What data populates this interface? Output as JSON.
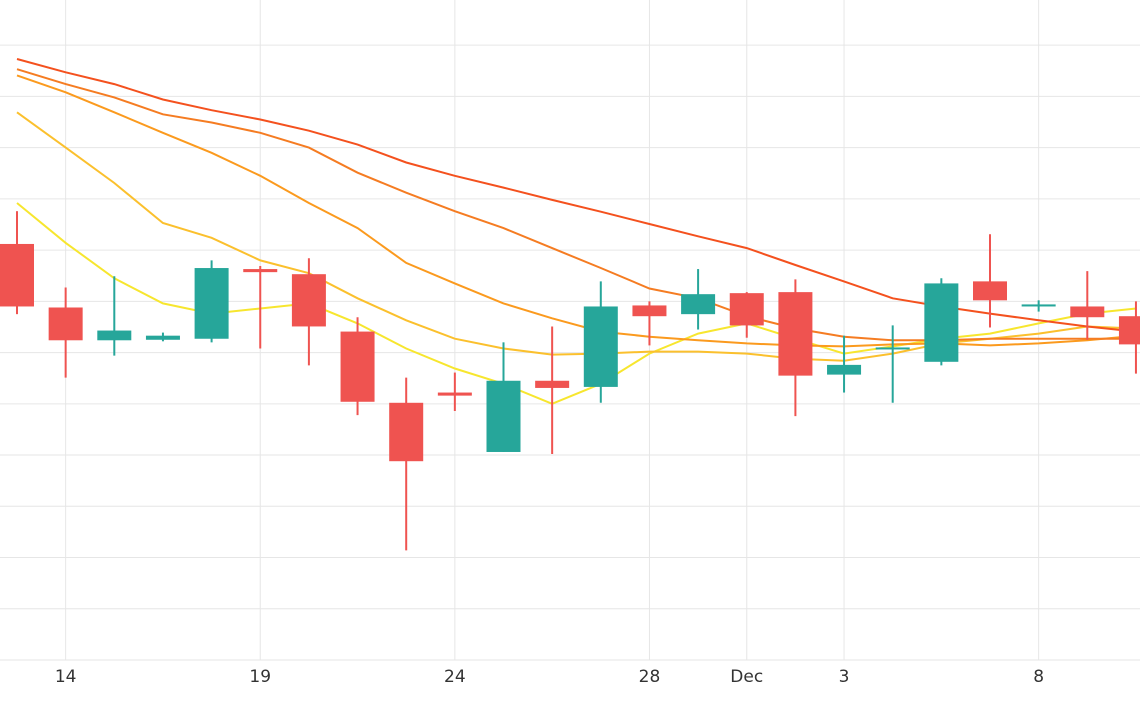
{
  "chart_data": {
    "type": "candlestick",
    "categories": [
      null,
      "14",
      null,
      null,
      null,
      "19",
      null,
      null,
      null,
      "24",
      null,
      null,
      null,
      "28",
      null,
      "Dec",
      null,
      "3",
      null,
      null,
      null,
      "8",
      null,
      null
    ],
    "open": [
      81.2,
      68.8,
      62.4,
      62.5,
      62.7,
      76.3,
      75.3,
      64.1,
      50.2,
      52.2,
      40.6,
      54.5,
      53.3,
      69.2,
      67.5,
      71.6,
      71.8,
      55.7,
      60.8,
      58.2,
      73.9,
      69.0,
      69.0,
      67.1
    ],
    "high": [
      87.6,
      72.7,
      74.9,
      63.9,
      78.0,
      76.9,
      78.4,
      66.9,
      55.1,
      56.1,
      62.0,
      65.1,
      73.9,
      70.0,
      76.3,
      71.8,
      74.3,
      63.3,
      65.3,
      74.5,
      83.1,
      70.2,
      75.9,
      70.0
    ],
    "low": [
      67.5,
      55.1,
      59.4,
      62.2,
      62.0,
      60.8,
      57.5,
      47.8,
      21.4,
      48.6,
      40.6,
      40.2,
      50.2,
      61.4,
      64.5,
      62.9,
      47.6,
      52.2,
      50.2,
      57.5,
      64.9,
      68.0,
      62.5,
      55.9
    ],
    "close": [
      69.0,
      62.4,
      64.3,
      63.3,
      76.5,
      75.7,
      65.1,
      50.4,
      38.8,
      51.6,
      54.5,
      53.1,
      69.0,
      67.1,
      71.4,
      65.3,
      55.5,
      57.6,
      61.0,
      73.5,
      70.2,
      69.4,
      66.9,
      61.6
    ],
    "up_color": "#26a69a",
    "down_color": "#ef5350",
    "lines": [
      {
        "color": "#f7e62e",
        "values": [
          89.2,
          81.4,
          74.5,
          69.6,
          67.6,
          68.6,
          69.6,
          65.7,
          60.8,
          56.9,
          53.9,
          50.0,
          53.9,
          59.8,
          63.7,
          65.7,
          62.7,
          59.8,
          61.2,
          62.7,
          63.7,
          65.7,
          67.6,
          68.6
        ]
      },
      {
        "color": "#fbc02d",
        "values": [
          106.9,
          100,
          93.1,
          85.3,
          82.4,
          78.0,
          75.5,
          70.6,
          66.3,
          62.7,
          60.8,
          59.6,
          59.8,
          60.2,
          60.2,
          59.8,
          58.8,
          58.4,
          59.8,
          61.8,
          62.7,
          63.7,
          65.1,
          64.7
        ]
      },
      {
        "color": "#fb9a1e",
        "values": [
          114.1,
          110.8,
          106.9,
          102.9,
          99.0,
          94.5,
          89.2,
          84.3,
          77.5,
          73.5,
          69.6,
          66.7,
          64.1,
          63.1,
          62.4,
          61.8,
          61.4,
          61.2,
          61.6,
          61.8,
          61.4,
          61.8,
          62.4,
          63.3
        ]
      },
      {
        "color": "#f57c22",
        "values": [
          115.3,
          112.4,
          109.8,
          106.5,
          104.9,
          102.9,
          100,
          95.1,
          91.2,
          87.6,
          84.3,
          80.4,
          76.5,
          72.5,
          70.6,
          67.1,
          64.7,
          63.1,
          62.4,
          62.4,
          62.7,
          62.7,
          62.7,
          62.7
        ]
      },
      {
        "color": "#f4511e",
        "values": [
          117.3,
          114.7,
          112.4,
          109.4,
          107.3,
          105.5,
          103.3,
          100.6,
          97.1,
          94.5,
          92.2,
          89.8,
          87.5,
          85.1,
          82.7,
          80.4,
          77.1,
          73.9,
          70.6,
          69.0,
          67.6,
          66.3,
          65.1,
          64.1
        ]
      }
    ],
    "ylim": [
      0,
      129.4
    ],
    "yticks": [
      10,
      20,
      30,
      40,
      50,
      60,
      70,
      80,
      90,
      100,
      110,
      120
    ],
    "grid": true
  }
}
